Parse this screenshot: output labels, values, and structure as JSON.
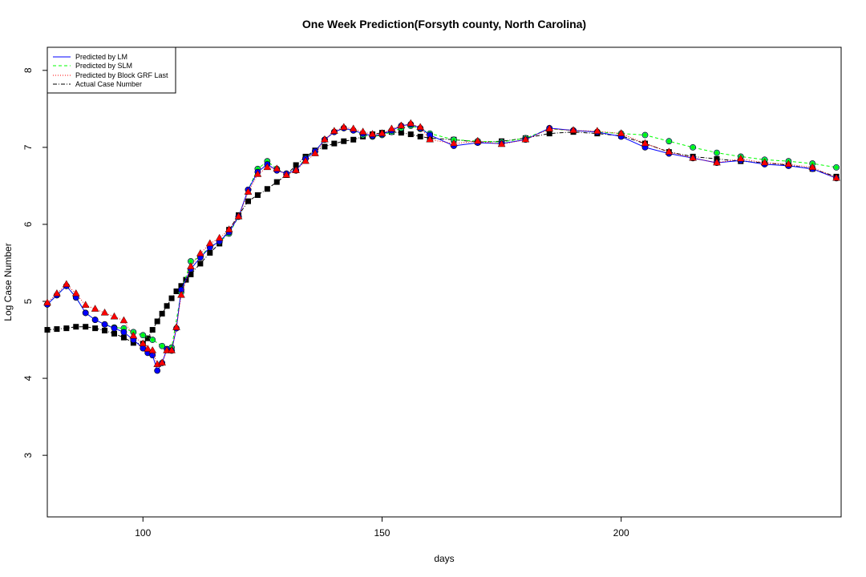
{
  "chart_data": {
    "type": "scatter",
    "title": "One Week Prediction(Forsyth county, North Carolina)",
    "xlabel": "days",
    "ylabel": "Log Case Number",
    "xlim": [
      80,
      246
    ],
    "ylim": [
      2.2,
      8.3
    ],
    "xticks": [
      "100",
      "150",
      "200"
    ],
    "yticks": [
      "3",
      "4",
      "5",
      "6",
      "7",
      "8"
    ],
    "legend_position": "top-left",
    "legend": [
      {
        "label": "Predicted by LM",
        "color": "#0000ff",
        "line": "solid"
      },
      {
        "label": "Predicted by SLM",
        "color": "#00ff00",
        "line": "dashed"
      },
      {
        "label": "Predicted by Block GRF Last",
        "color": "#ff0000",
        "line": "dotted"
      },
      {
        "label": "Actual Case Number",
        "color": "#000000",
        "line": "dotdash"
      }
    ],
    "series": [
      {
        "name": "Actual Case Number",
        "color": "#000000",
        "marker": "square",
        "x": [
          80,
          82,
          84,
          86,
          88,
          90,
          92,
          94,
          96,
          98,
          100,
          101,
          102,
          103,
          104,
          105,
          106,
          107,
          108,
          109,
          110,
          112,
          114,
          116,
          118,
          120,
          122,
          124,
          126,
          128,
          130,
          132,
          134,
          136,
          138,
          140,
          142,
          144,
          146,
          148,
          150,
          152,
          154,
          156,
          158,
          160,
          165,
          170,
          175,
          180,
          185,
          190,
          195,
          200,
          205,
          210,
          215,
          220,
          225,
          230,
          235,
          240,
          245
        ],
        "values": [
          4.63,
          4.64,
          4.65,
          4.67,
          4.67,
          4.65,
          4.62,
          4.58,
          4.53,
          4.46,
          4.45,
          4.52,
          4.63,
          4.74,
          4.84,
          4.94,
          5.04,
          5.13,
          5.2,
          5.28,
          5.35,
          5.49,
          5.63,
          5.75,
          5.93,
          6.12,
          6.3,
          6.38,
          6.46,
          6.55,
          6.64,
          6.77,
          6.88,
          6.96,
          7.01,
          7.05,
          7.08,
          7.1,
          7.14,
          7.17,
          7.19,
          7.2,
          7.19,
          7.17,
          7.14,
          7.12,
          7.1,
          7.07,
          7.08,
          7.12,
          7.18,
          7.2,
          7.18,
          7.15,
          7.05,
          6.94,
          6.88,
          6.85,
          6.82,
          6.8,
          6.77,
          6.72,
          6.62
        ]
      },
      {
        "name": "Predicted by LM",
        "color": "#0000ff",
        "marker": "circle",
        "x": [
          80,
          82,
          84,
          86,
          88,
          90,
          92,
          94,
          96,
          98,
          100,
          101,
          102,
          103,
          104,
          105,
          106,
          107,
          108,
          110,
          112,
          114,
          116,
          118,
          120,
          122,
          124,
          126,
          128,
          130,
          132,
          134,
          136,
          138,
          140,
          142,
          144,
          146,
          148,
          150,
          152,
          154,
          156,
          158,
          160,
          165,
          170,
          175,
          180,
          185,
          190,
          195,
          200,
          205,
          210,
          215,
          220,
          225,
          230,
          235,
          240,
          245
        ],
        "values": [
          4.96,
          5.08,
          5.2,
          5.05,
          4.85,
          4.76,
          4.7,
          4.65,
          4.6,
          4.5,
          4.39,
          4.33,
          4.3,
          4.1,
          4.2,
          4.38,
          4.36,
          4.65,
          5.15,
          5.42,
          5.57,
          5.7,
          5.78,
          5.9,
          6.1,
          6.45,
          6.68,
          6.78,
          6.7,
          6.66,
          6.7,
          6.85,
          6.95,
          7.1,
          7.2,
          7.25,
          7.22,
          7.18,
          7.15,
          7.17,
          7.22,
          7.28,
          7.3,
          7.25,
          7.16,
          7.02,
          7.06,
          7.05,
          7.1,
          7.25,
          7.22,
          7.2,
          7.14,
          7.0,
          6.92,
          6.86,
          6.8,
          6.83,
          6.78,
          6.76,
          6.72,
          6.6
        ]
      },
      {
        "name": "Predicted by SLM",
        "color": "#00ff00",
        "marker": "diamond",
        "x": [
          80,
          82,
          84,
          86,
          88,
          90,
          92,
          94,
          96,
          98,
          100,
          102,
          104,
          106,
          108,
          110,
          112,
          114,
          116,
          118,
          120,
          122,
          124,
          126,
          128,
          130,
          132,
          134,
          136,
          138,
          140,
          142,
          144,
          146,
          148,
          150,
          152,
          154,
          156,
          158,
          160,
          165,
          170,
          175,
          180,
          185,
          190,
          195,
          200,
          205,
          210,
          215,
          220,
          225,
          230,
          235,
          240,
          245
        ],
        "values": [
          4.96,
          5.08,
          5.2,
          5.05,
          4.85,
          4.76,
          4.7,
          4.66,
          4.65,
          4.6,
          4.56,
          4.5,
          4.42,
          4.4,
          5.12,
          5.52,
          5.58,
          5.71,
          5.77,
          5.88,
          6.1,
          6.45,
          6.72,
          6.82,
          6.72,
          6.65,
          6.7,
          6.86,
          6.95,
          7.1,
          7.2,
          7.25,
          7.22,
          7.16,
          7.14,
          7.16,
          7.2,
          7.25,
          7.28,
          7.24,
          7.18,
          7.1,
          7.08,
          7.07,
          7.12,
          7.24,
          7.22,
          7.2,
          7.18,
          7.16,
          7.08,
          7.0,
          6.93,
          6.88,
          6.84,
          6.82,
          6.79,
          6.74
        ]
      },
      {
        "name": "Predicted by Block GRF Last",
        "color": "#ff0000",
        "marker": "triangle",
        "x": [
          80,
          82,
          84,
          86,
          88,
          90,
          92,
          94,
          96,
          98,
          100,
          101,
          102,
          103,
          104,
          105,
          106,
          107,
          108,
          110,
          112,
          114,
          116,
          118,
          120,
          122,
          124,
          126,
          128,
          130,
          132,
          134,
          136,
          138,
          140,
          142,
          144,
          146,
          148,
          150,
          152,
          154,
          156,
          158,
          160,
          165,
          170,
          175,
          180,
          185,
          190,
          195,
          200,
          205,
          210,
          215,
          220,
          225,
          230,
          235,
          240,
          245
        ],
        "values": [
          4.98,
          5.1,
          5.22,
          5.1,
          4.95,
          4.9,
          4.85,
          4.8,
          4.75,
          4.55,
          4.45,
          4.38,
          4.36,
          4.18,
          4.2,
          4.36,
          4.36,
          4.66,
          5.08,
          5.45,
          5.62,
          5.75,
          5.82,
          5.93,
          6.1,
          6.42,
          6.65,
          6.74,
          6.72,
          6.64,
          6.7,
          6.82,
          6.92,
          7.1,
          7.21,
          7.26,
          7.24,
          7.2,
          7.17,
          7.18,
          7.24,
          7.28,
          7.31,
          7.26,
          7.1,
          7.05,
          7.08,
          7.04,
          7.1,
          7.24,
          7.22,
          7.21,
          7.18,
          7.05,
          6.94,
          6.86,
          6.8,
          6.85,
          6.8,
          6.78,
          6.74,
          6.6
        ]
      }
    ]
  }
}
